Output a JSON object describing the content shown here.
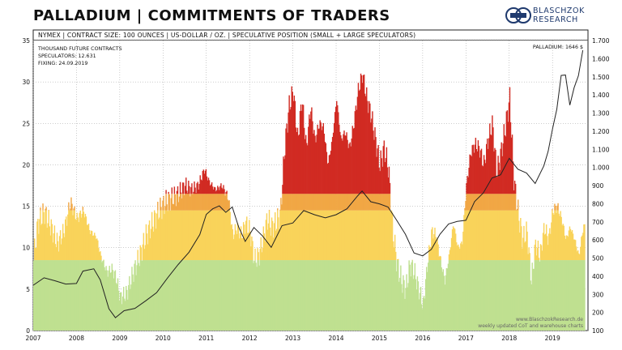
{
  "title": "PALLADIUM | COMMITMENTS OF TRADERS",
  "logo": {
    "line1": "BLASCHZOK",
    "line2": "RESEARCH",
    "icon": "gold-bars-icon"
  },
  "header_bar": "NYMEX | CONTRACT SIZE: 100 OUNCES | US-DOLLAR / OZ. | SPECULATIVE POSITION (SMALL + LARGE SPECULATORS)",
  "info": {
    "line1": "THOUSAND FUTURE CONTRACTS",
    "line2": "SPECULATORS: 12.631",
    "line3": "FIXING: 24.09.2019",
    "price_label": "PALLADIUM: 1646 $"
  },
  "footer": {
    "line1": "www.BlaschzokResearch.de",
    "line2": "weekly updated CoT and warehouse charts"
  },
  "colors": {
    "green": "#bfe090",
    "yellow": "#f9d35a",
    "orange": "#f1a745",
    "red": "#d12b23",
    "line": "#222222"
  },
  "chart_data": {
    "type": "area",
    "x_ticks": [
      "2007",
      "2008",
      "2009",
      "2010",
      "2011",
      "2012",
      "2013",
      "2014",
      "2015",
      "2016",
      "2017",
      "2018",
      "2019"
    ],
    "y_left": {
      "ylim": [
        0,
        35
      ],
      "ticks": [
        "0",
        "5",
        "10",
        "15",
        "20",
        "25",
        "30",
        "35"
      ]
    },
    "y_right": {
      "ylim": [
        100,
        1700
      ],
      "ticks": [
        "100",
        "200",
        "300",
        "400",
        "500",
        "600",
        "700",
        "800",
        "900",
        "1.000",
        "1.100",
        "1.200",
        "1.300",
        "1.400",
        "1.500",
        "1.600",
        "1.700"
      ]
    },
    "series": [
      {
        "role": "speculative-position",
        "x": [
          2007.0,
          2007.1,
          2007.25,
          2007.4,
          2007.55,
          2007.7,
          2007.85,
          2008.0,
          2008.15,
          2008.3,
          2008.45,
          2008.55,
          2008.7,
          2008.8,
          2008.9,
          2009.0,
          2009.15,
          2009.3,
          2009.45,
          2009.6,
          2009.75,
          2009.9,
          2010.05,
          2010.2,
          2010.35,
          2010.5,
          2010.65,
          2010.8,
          2010.95,
          2011.05,
          2011.2,
          2011.35,
          2011.5,
          2011.6,
          2011.7,
          2011.8,
          2011.9,
          2012.0,
          2012.1,
          2012.2,
          2012.3,
          2012.4,
          2012.5,
          2012.6,
          2012.7,
          2012.8,
          2012.9,
          2013.0,
          2013.1,
          2013.2,
          2013.3,
          2013.4,
          2013.5,
          2013.6,
          2013.7,
          2013.8,
          2013.9,
          2014.0,
          2014.1,
          2014.2,
          2014.3,
          2014.4,
          2014.5,
          2014.6,
          2014.7,
          2014.8,
          2014.9,
          2015.0,
          2015.1,
          2015.2,
          2015.3,
          2015.4,
          2015.5,
          2015.6,
          2015.7,
          2015.8,
          2015.9,
          2016.0,
          2016.1,
          2016.2,
          2016.3,
          2016.4,
          2016.5,
          2016.6,
          2016.7,
          2016.8,
          2016.9,
          2017.0,
          2017.1,
          2017.2,
          2017.3,
          2017.4,
          2017.5,
          2017.6,
          2017.7,
          2017.8,
          2017.9,
          2018.0,
          2018.1,
          2018.2,
          2018.3,
          2018.4,
          2018.5,
          2018.6,
          2018.7,
          2018.8,
          2018.9,
          2019.0,
          2019.1,
          2019.2,
          2019.3,
          2019.4,
          2019.5,
          2019.6,
          2019.7
        ],
        "values": [
          8.8,
          13,
          14.3,
          12.5,
          10.5,
          12,
          15.5,
          13.5,
          14.5,
          12,
          11.3,
          9,
          7,
          7.5,
          6.5,
          4,
          4.5,
          7,
          9,
          11.5,
          13,
          14.5,
          15.5,
          16,
          16.5,
          17.5,
          17,
          17.5,
          19.5,
          18,
          17,
          17.5,
          16,
          11.5,
          12.5,
          11.5,
          13,
          12,
          8.5,
          9,
          11,
          13.5,
          12.5,
          13,
          14,
          22,
          27,
          29,
          23,
          28,
          22,
          27,
          23,
          25,
          24.5,
          20,
          23,
          28,
          23,
          24,
          22,
          25,
          29,
          31,
          28,
          26,
          23,
          20,
          22,
          19.5,
          12,
          8,
          6,
          5,
          8,
          7,
          5,
          3,
          8,
          12,
          11.5,
          8.5,
          6,
          9,
          13,
          10,
          10.5,
          17.5,
          21.5,
          22.5,
          22,
          20,
          23,
          25,
          19,
          21.5,
          24.5,
          28,
          18,
          14,
          11,
          12,
          6,
          10.5,
          9,
          12.5,
          11,
          14.5,
          15,
          13.5,
          11,
          12.5,
          11,
          9,
          12.5
        ]
      },
      {
        "role": "palladium-price-usd",
        "x": [
          2007.0,
          2007.25,
          2007.5,
          2007.75,
          2008.0,
          2008.15,
          2008.4,
          2008.55,
          2008.75,
          2008.9,
          2009.1,
          2009.35,
          2009.6,
          2009.85,
          2010.1,
          2010.35,
          2010.6,
          2010.85,
          2011.0,
          2011.15,
          2011.3,
          2011.45,
          2011.6,
          2011.75,
          2011.9,
          2012.1,
          2012.3,
          2012.5,
          2012.75,
          2013.0,
          2013.25,
          2013.5,
          2013.75,
          2014.0,
          2014.25,
          2014.5,
          2014.6,
          2014.8,
          2015.0,
          2015.2,
          2015.4,
          2015.6,
          2015.8,
          2016.0,
          2016.2,
          2016.4,
          2016.6,
          2016.8,
          2017.0,
          2017.2,
          2017.4,
          2017.6,
          2017.8,
          2018.0,
          2018.2,
          2018.4,
          2018.6,
          2018.8,
          2018.9,
          2019.0,
          2019.1,
          2019.2,
          2019.3,
          2019.4,
          2019.5,
          2019.6,
          2019.7
        ],
        "values": [
          350,
          380,
          370,
          360,
          370,
          430,
          450,
          380,
          220,
          180,
          200,
          220,
          270,
          320,
          400,
          470,
          530,
          620,
          740,
          780,
          800,
          760,
          780,
          660,
          580,
          680,
          610,
          570,
          690,
          700,
          760,
          730,
          710,
          730,
          770,
          850,
          880,
          800,
          810,
          770,
          720,
          620,
          540,
          500,
          560,
          620,
          700,
          690,
          720,
          800,
          870,
          930,
          970,
          1040,
          1000,
          960,
          920,
          1000,
          1080,
          1220,
          1330,
          1500,
          1500,
          1350,
          1450,
          1500,
          1646
        ]
      }
    ]
  }
}
